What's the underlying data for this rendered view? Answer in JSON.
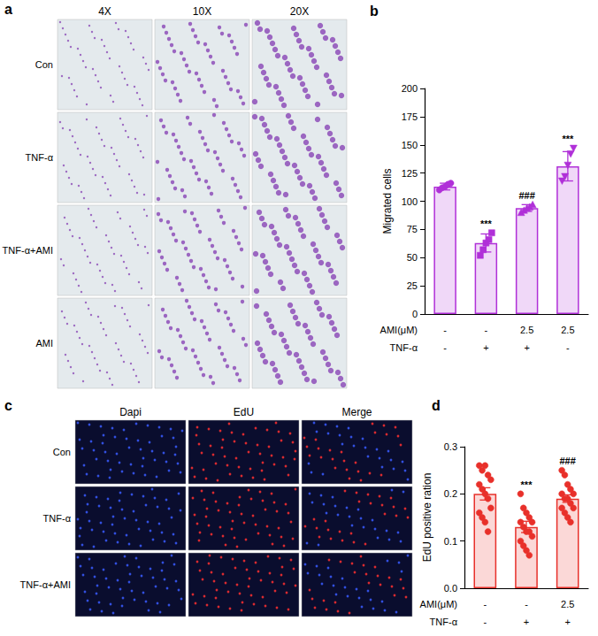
{
  "chart_data": [
    {
      "type": "bar",
      "title": "b",
      "ylabel": "Migrated cells",
      "categories": [
        null,
        null,
        null,
        null
      ],
      "conditions": [
        {
          "name": "AMI(μM)",
          "values": [
            "-",
            "-",
            "2.5",
            "2.5"
          ]
        },
        {
          "name": "TNF-α",
          "values": [
            "-",
            "+",
            "+",
            "-"
          ]
        }
      ],
      "values": [
        113,
        63,
        94,
        131
      ],
      "errors": [
        3,
        8,
        3,
        13
      ],
      "points": [
        [
          110,
          112,
          113,
          115,
          116
        ],
        [
          52,
          57,
          63,
          66,
          72
        ],
        [
          90,
          92,
          94,
          95,
          97
        ],
        [
          118,
          122,
          132,
          142,
          147
        ]
      ],
      "annotations": [
        null,
        "***",
        "###",
        "***"
      ],
      "color": "#b030d8",
      "ylim": [
        0,
        200
      ],
      "yticks": [
        0,
        25,
        50,
        75,
        100,
        125,
        150,
        175,
        200
      ],
      "grid": false
    },
    {
      "type": "bar",
      "title": "d",
      "ylabel": "EdU positive ration",
      "categories": [
        null,
        null,
        null
      ],
      "conditions": [
        {
          "name": "AMI(μM)",
          "values": [
            "-",
            "-",
            "2.5"
          ]
        },
        {
          "name": "TNF-α",
          "values": [
            "-",
            "+",
            "+"
          ]
        }
      ],
      "values": [
        0.2,
        0.13,
        0.19
      ],
      "errors": [
        0.013,
        0.012,
        0.008
      ],
      "points": [
        [
          0.26,
          0.25,
          0.26,
          0.24,
          0.23,
          0.22,
          0.21,
          0.2,
          0.19,
          0.17,
          0.16,
          0.15,
          0.14,
          0.12
        ],
        [
          0.2,
          0.17,
          0.16,
          0.15,
          0.14,
          0.14,
          0.13,
          0.12,
          0.12,
          0.11,
          0.1,
          0.09,
          0.08,
          0.07
        ],
        [
          0.25,
          0.24,
          0.22,
          0.21,
          0.2,
          0.2,
          0.19,
          0.19,
          0.18,
          0.17,
          0.17,
          0.16,
          0.15,
          0.14
        ]
      ],
      "annotations": [
        null,
        "***",
        "###"
      ],
      "color": "#e8302a",
      "marker": "circle",
      "ylim": [
        0,
        0.3
      ],
      "yticks": [
        {
          "value": 0,
          "label": "0.0"
        },
        0.1,
        0.2,
        0.3
      ],
      "grid": false
    }
  ],
  "image_panels": [
    {
      "label": "a",
      "columns": [
        "4X",
        "10X",
        "20X"
      ],
      "rows": [
        "Con",
        "TNF-α",
        "TNF-α+AMI",
        "AMI"
      ]
    },
    {
      "label": "c",
      "columns": [
        "Dapi",
        "EdU",
        "Merge"
      ],
      "rows": [
        "Con",
        "TNF-α",
        "TNF-α+AMI"
      ]
    }
  ]
}
